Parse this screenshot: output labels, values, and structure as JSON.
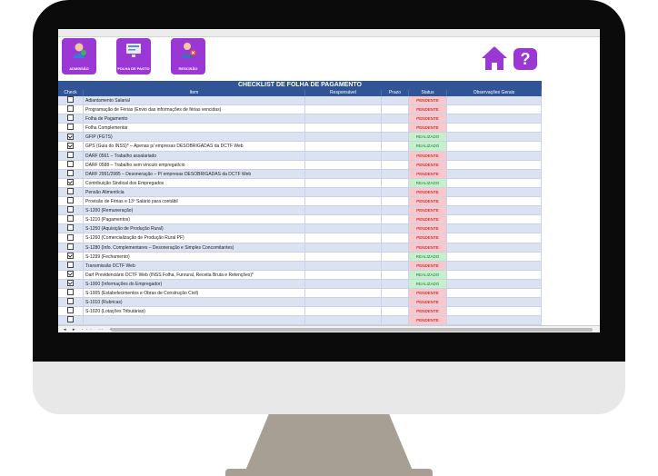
{
  "toolbar": {
    "tiles": [
      {
        "label": "ADMISSÃO",
        "icon": "admission-icon"
      },
      {
        "label": "FOLHA DE PAGTO",
        "icon": "payroll-icon"
      },
      {
        "label": "RESCISÃO",
        "icon": "termination-icon"
      }
    ],
    "home_icon": "home-icon",
    "help_label": "?"
  },
  "checklist": {
    "title": "CHECKLIST DE FOLHA DE PAGAMENTO",
    "columns": {
      "check": "Check",
      "item": "Item",
      "responsible": "Responsável",
      "deadline": "Prazo",
      "status": "Status",
      "notes": "Observações Gerais"
    },
    "rows": [
      {
        "checked": false,
        "item": "Adiantamento Salarial",
        "status": "PENDENTE"
      },
      {
        "checked": false,
        "item": "Programação de Férias (Envio das informações de férias vencidas)",
        "status": "PENDENTE"
      },
      {
        "checked": false,
        "item": "Folha de Pagamento",
        "status": "PENDENTE"
      },
      {
        "checked": false,
        "item": "Folha Complementar",
        "status": "PENDENTE"
      },
      {
        "checked": true,
        "item": "GFIP (FGTS)",
        "status": "REALIZADO"
      },
      {
        "checked": true,
        "item": "GPS (Guia do INSS)* – Apenas p/ empresas DESOBRIGADAS da DCTF Web",
        "status": "REALIZADO"
      },
      {
        "checked": false,
        "item": "DARF 0561 – Trabalho assalariado",
        "status": "PENDENTE"
      },
      {
        "checked": false,
        "item": "DARF 0588 – Trabalho sem vínculo empregatício",
        "status": "PENDENTE"
      },
      {
        "checked": false,
        "item": "DARF 2991/2985 – Desoneração – P/ empresas DESOBRIGADAS da DCTF Web",
        "status": "PENDENTE"
      },
      {
        "checked": true,
        "item": "Contribuição Sindical dos Empregados",
        "status": "REALIZADO"
      },
      {
        "checked": false,
        "item": "Pensão Alimentícia",
        "status": "PENDENTE"
      },
      {
        "checked": false,
        "item": "Provisão de Férias e 13º Salário para contábil",
        "status": "PENDENTE"
      },
      {
        "checked": false,
        "item": "S-1200 (Remuneração)",
        "status": "PENDENTE"
      },
      {
        "checked": false,
        "item": "S-1210 (Pagamentos)",
        "status": "PENDENTE"
      },
      {
        "checked": false,
        "item": "S-1250 (Aquisição de Produção Rural)",
        "status": "PENDENTE"
      },
      {
        "checked": false,
        "item": "S-1260 (Comercialização de Produção Rural PF)",
        "status": "PENDENTE"
      },
      {
        "checked": false,
        "item": "S-1280 (Info. Complementares – Desoneração e Simples Concomitantes)",
        "status": "PENDENTE"
      },
      {
        "checked": true,
        "item": "S-1299 (Fechamento)",
        "status": "REALIZADO"
      },
      {
        "checked": false,
        "item": "Transmissão DCTF Web",
        "status": "PENDENTE"
      },
      {
        "checked": true,
        "item": "Darf Previdenciário DCTF Web (INSS Folha, Funrural, Receita Bruta e Retenções)*",
        "status": "REALIZADO"
      },
      {
        "checked": true,
        "item": "S-1000 (Informações do Empregador)",
        "status": "REALIZADO"
      },
      {
        "checked": false,
        "item": "S-1005 (Estabelecimentos e Obras de Construção Civil)",
        "status": "PENDENTE"
      },
      {
        "checked": false,
        "item": "S-1010 (Rubricas)",
        "status": "PENDENTE"
      },
      {
        "checked": false,
        "item": "S-1020 (Lotações Tributárias)",
        "status": "PENDENTE"
      },
      {
        "checked": false,
        "item": "",
        "status": "PENDENTE"
      }
    ]
  },
  "sheet_nav": {
    "label": "◂ ▸ ··· ⋯ +"
  },
  "colors": {
    "accent": "#9b37d4",
    "header": "#305496",
    "pending_bg": "#f9c8cc",
    "done_bg": "#c6efce"
  }
}
